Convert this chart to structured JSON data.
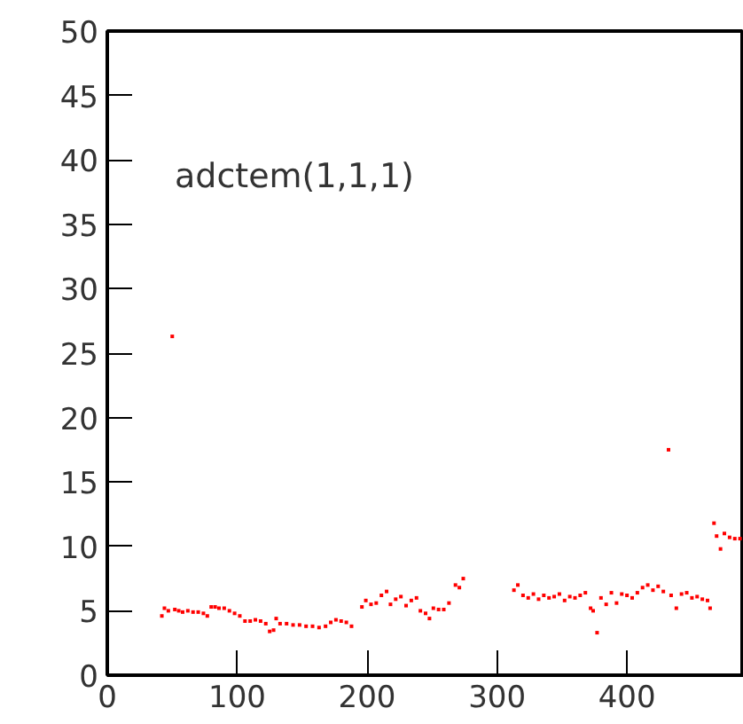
{
  "chart_data": {
    "type": "scatter",
    "title": "adctem(1,1,1)",
    "x": [
      42,
      44,
      47,
      50,
      52,
      55,
      58,
      62,
      66,
      70,
      74,
      77,
      80,
      83,
      86,
      90,
      94,
      98,
      102,
      106,
      110,
      114,
      118,
      122,
      125,
      128,
      130,
      133,
      138,
      143,
      148,
      153,
      158,
      163,
      168,
      172,
      176,
      180,
      184,
      188,
      196,
      199,
      203,
      207,
      211,
      215,
      218,
      222,
      226,
      230,
      234,
      238,
      241,
      245,
      248,
      251,
      255,
      259,
      263,
      268,
      271,
      274,
      313,
      316,
      320,
      324,
      328,
      332,
      336,
      340,
      344,
      348,
      352,
      356,
      360,
      364,
      368,
      372,
      374,
      377,
      380,
      384,
      388,
      392,
      396,
      400,
      404,
      408,
      412,
      416,
      420,
      424,
      428,
      432,
      434,
      438,
      442,
      446,
      450,
      454,
      458,
      462,
      464,
      467,
      469,
      472,
      475,
      479,
      483,
      487
    ],
    "series": [
      {
        "color": "#ff0000",
        "values": [
          4.6,
          5.2,
          5.0,
          26.3,
          5.1,
          5.0,
          4.9,
          5.0,
          4.9,
          4.9,
          4.8,
          4.6,
          5.3,
          5.3,
          5.2,
          5.2,
          5.0,
          4.8,
          4.6,
          4.2,
          4.2,
          4.3,
          4.2,
          4.0,
          3.4,
          3.5,
          4.4,
          4.0,
          4.0,
          3.9,
          3.9,
          3.8,
          3.8,
          3.7,
          3.8,
          4.1,
          4.3,
          4.2,
          4.1,
          3.8,
          5.3,
          5.8,
          5.5,
          5.6,
          6.2,
          6.5,
          5.5,
          5.9,
          6.1,
          5.4,
          5.8,
          6.0,
          5.0,
          4.8,
          4.4,
          5.2,
          5.1,
          5.1,
          5.6,
          7.0,
          6.8,
          7.5,
          6.6,
          7.0,
          6.2,
          6.0,
          6.3,
          5.9,
          6.2,
          6.0,
          6.1,
          6.3,
          5.8,
          6.1,
          6.0,
          6.2,
          6.4,
          5.2,
          5.0,
          3.3,
          6.0,
          5.5,
          6.4,
          5.6,
          6.3,
          6.2,
          6.0,
          6.4,
          6.8,
          7.0,
          6.6,
          6.9,
          6.5,
          17.5,
          6.2,
          5.2,
          6.3,
          6.4,
          6.0,
          6.1,
          5.9,
          5.8,
          5.2,
          11.8,
          10.8,
          9.8,
          11.0,
          10.7,
          10.6,
          10.6
        ]
      }
    ],
    "xlim": [
      0,
      490
    ],
    "ylim": [
      0,
      50
    ],
    "xticks": [
      0,
      100,
      200,
      300,
      400
    ],
    "yticks": [
      0,
      5,
      10,
      15,
      20,
      25,
      30,
      35,
      40,
      45,
      50
    ],
    "grid": false,
    "marker": "square"
  }
}
